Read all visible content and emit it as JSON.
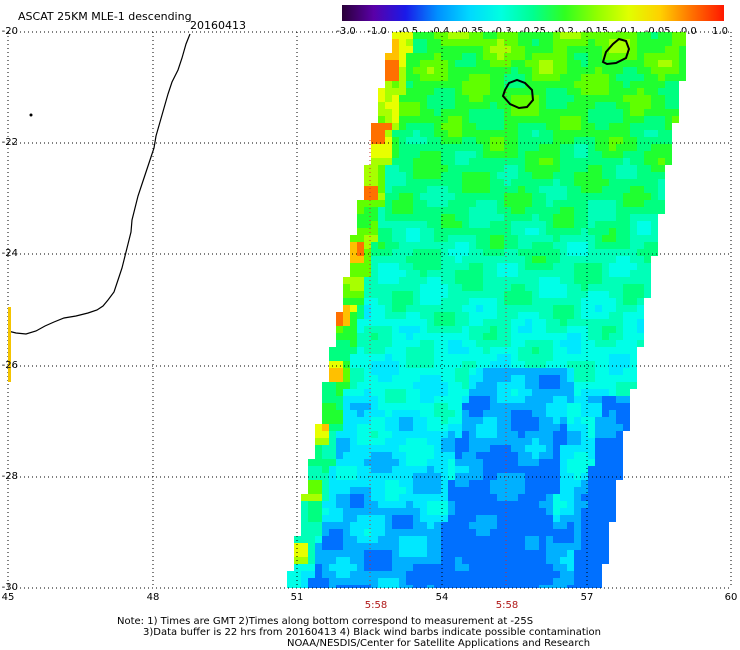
{
  "header": {
    "title": "ASCAT 25KM MLE-1 descending",
    "date": "20160413"
  },
  "colorbar": {
    "labels": [
      "-3.0",
      "-1.0",
      "-0.5",
      "-0.4",
      "-0.35",
      "-0.3",
      "-0.25",
      "-0.2",
      "-0.15",
      "-0.1",
      "-0.05",
      "0.0",
      "1.0"
    ],
    "colors": [
      "#2a0038",
      "#5a00a8",
      "#1a1ae8",
      "#0090ff",
      "#00d8ff",
      "#00ffe0",
      "#00ff90",
      "#30ff20",
      "#90ff00",
      "#e0ff00",
      "#ffd000",
      "#ff7000",
      "#ff1800"
    ]
  },
  "map": {
    "lat_labels": [
      "-20",
      "-22",
      "-24",
      "-26",
      "-28",
      "-30"
    ],
    "lon_labels": [
      "45",
      "48",
      "51",
      "54",
      "57",
      "60"
    ],
    "pass_times": [
      "5:58",
      "5:58"
    ],
    "lat_range": [
      -30,
      -20
    ],
    "lon_range": [
      45,
      60
    ]
  },
  "notes": {
    "line1": "Note: 1) Times are GMT 2)Times along bottom correspond to measurement at -25S",
    "line2": "3)Data buffer is 22 hrs from 20160413 4) Black wind barbs indicate possible contamination",
    "line3": "NOAA/NESDIS/Center for Satellite Applications and Research"
  }
}
